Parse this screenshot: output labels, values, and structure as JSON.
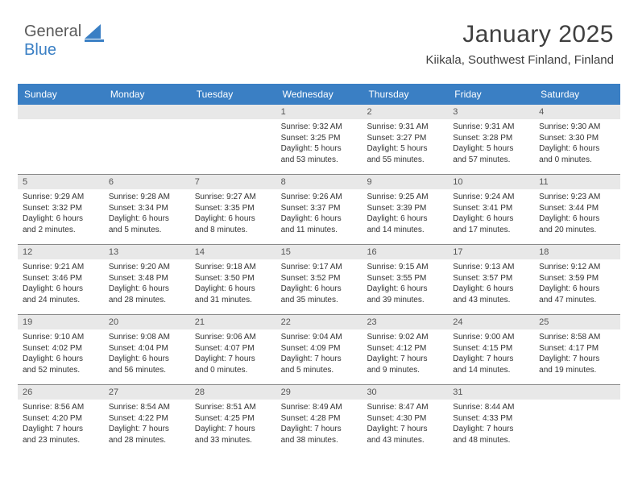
{
  "logo": {
    "word1": "General",
    "word2": "Blue",
    "color1": "#5a5a5a",
    "color2": "#3a7fc4"
  },
  "header": {
    "month_title": "January 2025",
    "location": "Kiikala, Southwest Finland, Finland"
  },
  "styling": {
    "background": "#ffffff",
    "header_bar_bg": "#3a7fc4",
    "header_bar_fg": "#ffffff",
    "daynum_bg": "#e8e8e8",
    "daynum_fg": "#555555",
    "row_border": "#8a8a8a",
    "body_text": "#333333",
    "month_title_fontsize": 30,
    "location_fontsize": 15,
    "dayheader_fontsize": 12,
    "daynum_fontsize": 11,
    "body_fontsize": 10
  },
  "day_names": [
    "Sunday",
    "Monday",
    "Tuesday",
    "Wednesday",
    "Thursday",
    "Friday",
    "Saturday"
  ],
  "weeks": [
    [
      null,
      null,
      null,
      {
        "n": "1",
        "sunrise": "Sunrise: 9:32 AM",
        "sunset": "Sunset: 3:25 PM",
        "d1": "Daylight: 5 hours",
        "d2": "and 53 minutes."
      },
      {
        "n": "2",
        "sunrise": "Sunrise: 9:31 AM",
        "sunset": "Sunset: 3:27 PM",
        "d1": "Daylight: 5 hours",
        "d2": "and 55 minutes."
      },
      {
        "n": "3",
        "sunrise": "Sunrise: 9:31 AM",
        "sunset": "Sunset: 3:28 PM",
        "d1": "Daylight: 5 hours",
        "d2": "and 57 minutes."
      },
      {
        "n": "4",
        "sunrise": "Sunrise: 9:30 AM",
        "sunset": "Sunset: 3:30 PM",
        "d1": "Daylight: 6 hours",
        "d2": "and 0 minutes."
      }
    ],
    [
      {
        "n": "5",
        "sunrise": "Sunrise: 9:29 AM",
        "sunset": "Sunset: 3:32 PM",
        "d1": "Daylight: 6 hours",
        "d2": "and 2 minutes."
      },
      {
        "n": "6",
        "sunrise": "Sunrise: 9:28 AM",
        "sunset": "Sunset: 3:34 PM",
        "d1": "Daylight: 6 hours",
        "d2": "and 5 minutes."
      },
      {
        "n": "7",
        "sunrise": "Sunrise: 9:27 AM",
        "sunset": "Sunset: 3:35 PM",
        "d1": "Daylight: 6 hours",
        "d2": "and 8 minutes."
      },
      {
        "n": "8",
        "sunrise": "Sunrise: 9:26 AM",
        "sunset": "Sunset: 3:37 PM",
        "d1": "Daylight: 6 hours",
        "d2": "and 11 minutes."
      },
      {
        "n": "9",
        "sunrise": "Sunrise: 9:25 AM",
        "sunset": "Sunset: 3:39 PM",
        "d1": "Daylight: 6 hours",
        "d2": "and 14 minutes."
      },
      {
        "n": "10",
        "sunrise": "Sunrise: 9:24 AM",
        "sunset": "Sunset: 3:41 PM",
        "d1": "Daylight: 6 hours",
        "d2": "and 17 minutes."
      },
      {
        "n": "11",
        "sunrise": "Sunrise: 9:23 AM",
        "sunset": "Sunset: 3:44 PM",
        "d1": "Daylight: 6 hours",
        "d2": "and 20 minutes."
      }
    ],
    [
      {
        "n": "12",
        "sunrise": "Sunrise: 9:21 AM",
        "sunset": "Sunset: 3:46 PM",
        "d1": "Daylight: 6 hours",
        "d2": "and 24 minutes."
      },
      {
        "n": "13",
        "sunrise": "Sunrise: 9:20 AM",
        "sunset": "Sunset: 3:48 PM",
        "d1": "Daylight: 6 hours",
        "d2": "and 28 minutes."
      },
      {
        "n": "14",
        "sunrise": "Sunrise: 9:18 AM",
        "sunset": "Sunset: 3:50 PM",
        "d1": "Daylight: 6 hours",
        "d2": "and 31 minutes."
      },
      {
        "n": "15",
        "sunrise": "Sunrise: 9:17 AM",
        "sunset": "Sunset: 3:52 PM",
        "d1": "Daylight: 6 hours",
        "d2": "and 35 minutes."
      },
      {
        "n": "16",
        "sunrise": "Sunrise: 9:15 AM",
        "sunset": "Sunset: 3:55 PM",
        "d1": "Daylight: 6 hours",
        "d2": "and 39 minutes."
      },
      {
        "n": "17",
        "sunrise": "Sunrise: 9:13 AM",
        "sunset": "Sunset: 3:57 PM",
        "d1": "Daylight: 6 hours",
        "d2": "and 43 minutes."
      },
      {
        "n": "18",
        "sunrise": "Sunrise: 9:12 AM",
        "sunset": "Sunset: 3:59 PM",
        "d1": "Daylight: 6 hours",
        "d2": "and 47 minutes."
      }
    ],
    [
      {
        "n": "19",
        "sunrise": "Sunrise: 9:10 AM",
        "sunset": "Sunset: 4:02 PM",
        "d1": "Daylight: 6 hours",
        "d2": "and 52 minutes."
      },
      {
        "n": "20",
        "sunrise": "Sunrise: 9:08 AM",
        "sunset": "Sunset: 4:04 PM",
        "d1": "Daylight: 6 hours",
        "d2": "and 56 minutes."
      },
      {
        "n": "21",
        "sunrise": "Sunrise: 9:06 AM",
        "sunset": "Sunset: 4:07 PM",
        "d1": "Daylight: 7 hours",
        "d2": "and 0 minutes."
      },
      {
        "n": "22",
        "sunrise": "Sunrise: 9:04 AM",
        "sunset": "Sunset: 4:09 PM",
        "d1": "Daylight: 7 hours",
        "d2": "and 5 minutes."
      },
      {
        "n": "23",
        "sunrise": "Sunrise: 9:02 AM",
        "sunset": "Sunset: 4:12 PM",
        "d1": "Daylight: 7 hours",
        "d2": "and 9 minutes."
      },
      {
        "n": "24",
        "sunrise": "Sunrise: 9:00 AM",
        "sunset": "Sunset: 4:15 PM",
        "d1": "Daylight: 7 hours",
        "d2": "and 14 minutes."
      },
      {
        "n": "25",
        "sunrise": "Sunrise: 8:58 AM",
        "sunset": "Sunset: 4:17 PM",
        "d1": "Daylight: 7 hours",
        "d2": "and 19 minutes."
      }
    ],
    [
      {
        "n": "26",
        "sunrise": "Sunrise: 8:56 AM",
        "sunset": "Sunset: 4:20 PM",
        "d1": "Daylight: 7 hours",
        "d2": "and 23 minutes."
      },
      {
        "n": "27",
        "sunrise": "Sunrise: 8:54 AM",
        "sunset": "Sunset: 4:22 PM",
        "d1": "Daylight: 7 hours",
        "d2": "and 28 minutes."
      },
      {
        "n": "28",
        "sunrise": "Sunrise: 8:51 AM",
        "sunset": "Sunset: 4:25 PM",
        "d1": "Daylight: 7 hours",
        "d2": "and 33 minutes."
      },
      {
        "n": "29",
        "sunrise": "Sunrise: 8:49 AM",
        "sunset": "Sunset: 4:28 PM",
        "d1": "Daylight: 7 hours",
        "d2": "and 38 minutes."
      },
      {
        "n": "30",
        "sunrise": "Sunrise: 8:47 AM",
        "sunset": "Sunset: 4:30 PM",
        "d1": "Daylight: 7 hours",
        "d2": "and 43 minutes."
      },
      {
        "n": "31",
        "sunrise": "Sunrise: 8:44 AM",
        "sunset": "Sunset: 4:33 PM",
        "d1": "Daylight: 7 hours",
        "d2": "and 48 minutes."
      },
      null
    ]
  ]
}
